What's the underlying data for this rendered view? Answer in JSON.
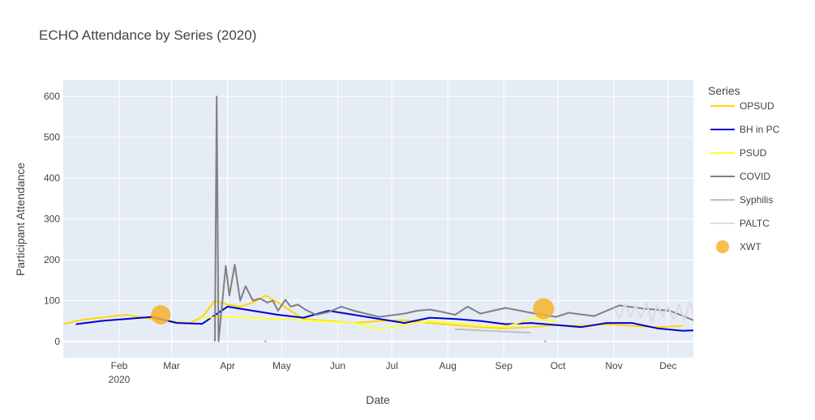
{
  "chart_data": {
    "type": "line",
    "title": "ECHO Attendance by Series (2020)",
    "xlabel": "Date",
    "ylabel": "Participant Attendance",
    "xlim": [
      "2020-01-01",
      "2020-12-15"
    ],
    "ylim": [
      -40,
      640
    ],
    "ytick_values": [
      0,
      100,
      200,
      300,
      400,
      500,
      600
    ],
    "ytick_labels": [
      "0",
      "100",
      "200",
      "300",
      "400",
      "500",
      "600"
    ],
    "xtick_values": [
      "2020-02-01",
      "2020-03-01",
      "2020-04-01",
      "2020-05-01",
      "2020-06-01",
      "2020-07-01",
      "2020-08-01",
      "2020-09-01",
      "2020-10-01",
      "2020-11-01",
      "2020-12-01"
    ],
    "xtick_labels": [
      "Feb",
      "Mar",
      "Apr",
      "May",
      "Jun",
      "Jul",
      "Aug",
      "Sep",
      "Oct",
      "Nov",
      "Dec"
    ],
    "xtick_sublabel": "2020",
    "grid": true,
    "legend_title": "Series",
    "legend_position": "right",
    "series": [
      {
        "name": "OPSUD",
        "mode": "line",
        "color": "#FFD700",
        "x": [
          "2020-01-01",
          "2020-01-08",
          "2020-01-15",
          "2020-01-22",
          "2020-01-29",
          "2020-02-05",
          "2020-02-12",
          "2020-02-19",
          "2020-02-26",
          "2020-03-04",
          "2020-03-11",
          "2020-03-18",
          "2020-03-25",
          "2020-04-01",
          "2020-04-08",
          "2020-04-15",
          "2020-04-22",
          "2020-04-29",
          "2020-05-06",
          "2020-05-13",
          "2020-05-27",
          "2020-06-10",
          "2020-06-24",
          "2020-07-08",
          "2020-07-22",
          "2020-08-05",
          "2020-08-19",
          "2020-09-02",
          "2020-09-16",
          "2020-09-30",
          "2020-10-14",
          "2020-10-28",
          "2020-11-11",
          "2020-11-25",
          "2020-12-09"
        ],
        "y": [
          42,
          50,
          55,
          58,
          62,
          65,
          60,
          55,
          52,
          47,
          45,
          60,
          100,
          90,
          85,
          95,
          112,
          95,
          75,
          55,
          50,
          45,
          50,
          52,
          45,
          40,
          35,
          32,
          35,
          40,
          38,
          42,
          38,
          35,
          38
        ]
      },
      {
        "name": "BH in PC",
        "mode": "line",
        "color": "#0000CD",
        "x": [
          "2020-01-08",
          "2020-01-22",
          "2020-02-05",
          "2020-02-19",
          "2020-03-04",
          "2020-03-18",
          "2020-04-01",
          "2020-04-15",
          "2020-04-29",
          "2020-05-13",
          "2020-05-27",
          "2020-06-10",
          "2020-06-24",
          "2020-07-08",
          "2020-07-22",
          "2020-08-05",
          "2020-08-19",
          "2020-09-02",
          "2020-09-16",
          "2020-09-30",
          "2020-10-14",
          "2020-10-28",
          "2020-11-11",
          "2020-11-25",
          "2020-12-09",
          "2020-12-23"
        ],
        "y": [
          42,
          50,
          55,
          60,
          45,
          43,
          85,
          75,
          65,
          58,
          75,
          65,
          55,
          45,
          58,
          55,
          50,
          42,
          45,
          40,
          35,
          45,
          45,
          32,
          26,
          28
        ]
      },
      {
        "name": "PSUD",
        "mode": "line",
        "color": "#FFFF33",
        "x": [
          "2020-03-18",
          "2020-04-01",
          "2020-04-15",
          "2020-04-29",
          "2020-05-13",
          "2020-05-27",
          "2020-06-10",
          "2020-06-24",
          "2020-07-08",
          "2020-07-22",
          "2020-08-05",
          "2020-08-19",
          "2020-09-02",
          "2020-09-16",
          "2020-09-30"
        ],
        "y": [
          58,
          60,
          58,
          55,
          52,
          48,
          45,
          30,
          40,
          50,
          45,
          38,
          36,
          55,
          50
        ]
      },
      {
        "name": "COVID",
        "mode": "line",
        "color": "#808080",
        "x": [
          "2020-03-25",
          "2020-03-26",
          "2020-03-27",
          "2020-03-31",
          "2020-04-02",
          "2020-04-05",
          "2020-04-08",
          "2020-04-11",
          "2020-04-15",
          "2020-04-19",
          "2020-04-23",
          "2020-04-26",
          "2020-04-29",
          "2020-05-03",
          "2020-05-06",
          "2020-05-10",
          "2020-05-14",
          "2020-05-20",
          "2020-05-27",
          "2020-06-03",
          "2020-06-10",
          "2020-06-24",
          "2020-07-08",
          "2020-07-15",
          "2020-07-22",
          "2020-07-29",
          "2020-08-05",
          "2020-08-12",
          "2020-08-19",
          "2020-08-26",
          "2020-09-02",
          "2020-09-16",
          "2020-09-30",
          "2020-10-07",
          "2020-10-21",
          "2020-11-04",
          "2020-11-18",
          "2020-12-02",
          "2020-12-16"
        ],
        "y": [
          0,
          600,
          0,
          185,
          112,
          188,
          100,
          135,
          100,
          105,
          95,
          100,
          75,
          102,
          85,
          90,
          78,
          65,
          72,
          85,
          75,
          60,
          68,
          75,
          78,
          72,
          65,
          85,
          68,
          75,
          82,
          70,
          60,
          70,
          62,
          88,
          80,
          75,
          50
        ]
      },
      {
        "name": "Syphilis",
        "mode": "line",
        "color": "#C0C0C0",
        "x": [
          "2020-08-05",
          "2020-08-19",
          "2020-09-02",
          "2020-09-16"
        ],
        "y": [
          30,
          27,
          24,
          21
        ]
      },
      {
        "name": "PALTC",
        "mode": "line",
        "color": "#DCDCDC",
        "x": [
          "2020-11-01",
          "2020-11-04",
          "2020-11-07",
          "2020-11-10",
          "2020-11-13",
          "2020-11-16",
          "2020-11-19",
          "2020-11-22",
          "2020-11-25",
          "2020-11-28",
          "2020-12-01",
          "2020-12-04",
          "2020-12-07",
          "2020-12-10",
          "2020-12-13",
          "2020-12-16"
        ],
        "y": [
          82,
          55,
          92,
          60,
          88,
          58,
          95,
          48,
          90,
          62,
          85,
          55,
          92,
          50,
          98,
          60
        ]
      },
      {
        "name": "XWT",
        "mode": "markers",
        "color": "#F7B22E",
        "x": [
          "2020-02-24",
          "2020-09-23",
          "2020-04-22",
          "2020-09-24"
        ],
        "y": [
          65,
          80,
          0,
          0
        ],
        "size": [
          24,
          26,
          3,
          3
        ]
      }
    ]
  }
}
